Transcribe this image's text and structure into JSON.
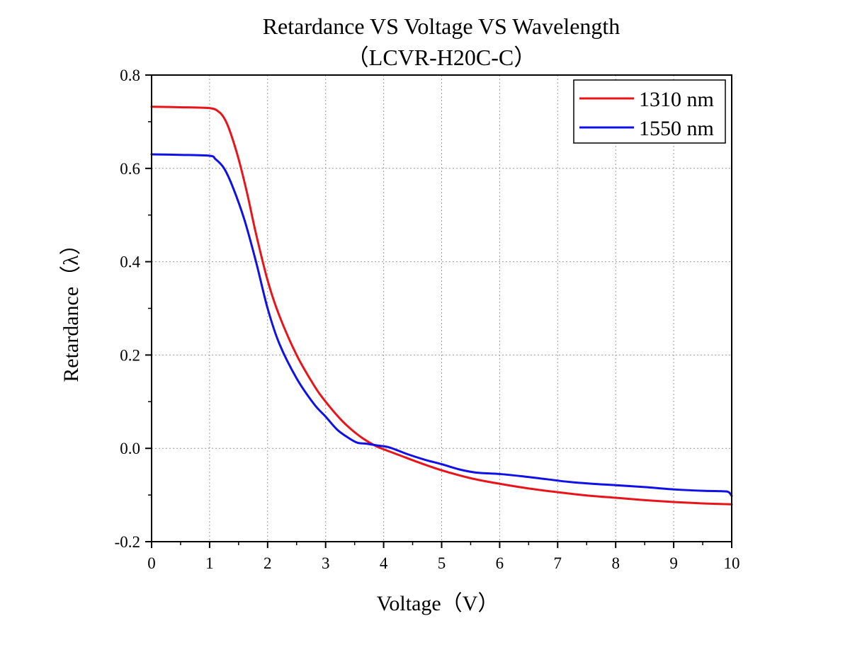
{
  "chart_data": {
    "type": "line",
    "title": "Retardance VS Voltage VS Wavelength",
    "subtitle": "（LCVR-H20C-C）",
    "xlabel": "Voltage（V）",
    "ylabel": "Retardance（λ）",
    "xlim": [
      0,
      10
    ],
    "ylim": [
      -0.2,
      0.8
    ],
    "xticks": [
      "0",
      "1",
      "2",
      "3",
      "4",
      "5",
      "6",
      "7",
      "8",
      "9",
      "10"
    ],
    "yticks": [
      "-0.2",
      "0.0",
      "0.2",
      "0.4",
      "0.6",
      "0.8"
    ],
    "grid": true,
    "legend_position": "top-right",
    "series": [
      {
        "name": "1310 nm",
        "color": "#e8141a",
        "x": [
          0,
          0.5,
          1.0,
          1.15,
          1.25,
          1.35,
          1.5,
          1.65,
          1.8,
          2.0,
          2.2,
          2.5,
          2.8,
          3.0,
          3.3,
          3.6,
          3.85,
          4.0,
          4.3,
          4.6,
          5.0,
          5.5,
          6.0,
          6.5,
          7.0,
          7.5,
          8.0,
          8.5,
          9.0,
          9.5,
          10.0
        ],
        "y": [
          0.732,
          0.731,
          0.729,
          0.722,
          0.708,
          0.68,
          0.62,
          0.545,
          0.46,
          0.36,
          0.285,
          0.2,
          0.135,
          0.1,
          0.057,
          0.025,
          0.006,
          -0.002,
          -0.016,
          -0.03,
          -0.047,
          -0.064,
          -0.076,
          -0.086,
          -0.094,
          -0.101,
          -0.106,
          -0.111,
          -0.115,
          -0.118,
          -0.12
        ]
      },
      {
        "name": "1550 nm",
        "color": "#1010e8",
        "x": [
          0,
          0.5,
          1.0,
          1.1,
          1.25,
          1.4,
          1.6,
          1.8,
          2.0,
          2.2,
          2.5,
          2.8,
          3.0,
          3.2,
          3.4,
          3.55,
          3.7,
          3.9,
          4.1,
          4.4,
          4.7,
          5.0,
          5.3,
          5.6,
          6.0,
          6.4,
          6.8,
          7.2,
          7.6,
          8.0,
          8.5,
          9.0,
          9.5,
          9.85,
          9.95,
          10.0
        ],
        "y": [
          0.63,
          0.629,
          0.627,
          0.62,
          0.6,
          0.56,
          0.49,
          0.4,
          0.3,
          0.225,
          0.15,
          0.095,
          0.068,
          0.04,
          0.022,
          0.012,
          0.01,
          0.006,
          0.002,
          -0.012,
          -0.024,
          -0.034,
          -0.045,
          -0.052,
          -0.055,
          -0.06,
          -0.066,
          -0.072,
          -0.076,
          -0.079,
          -0.083,
          -0.088,
          -0.091,
          -0.092,
          -0.094,
          -0.102
        ]
      }
    ]
  }
}
